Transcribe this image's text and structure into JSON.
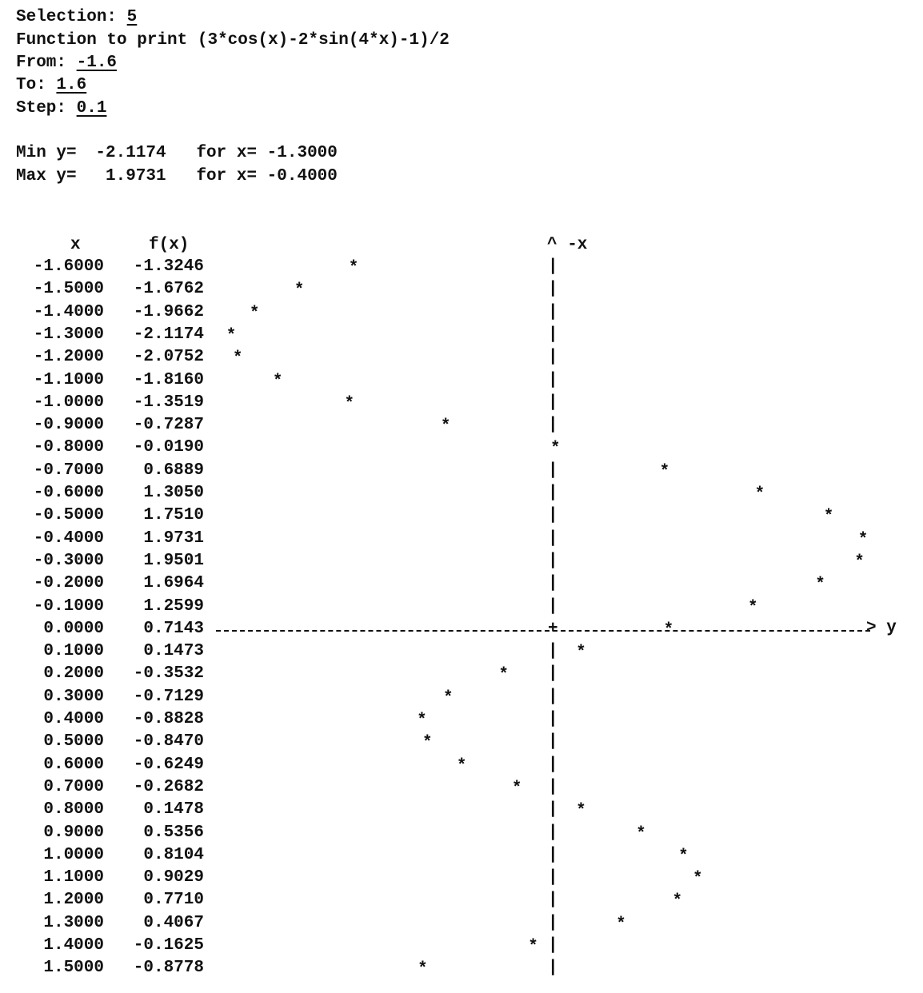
{
  "prompt": {
    "selection_label": "Selection:",
    "selection_value": "5",
    "function_label": "Function to print",
    "function_value": "(3*cos(x)-2*sin(4*x)-1)/2",
    "from_label": "From:",
    "from_value": "-1.6",
    "to_label": "To:",
    "to_value": "1.6",
    "step_label": "Step:",
    "step_value": "0.1"
  },
  "summary": {
    "min_label": "Min y=",
    "min_y": "-2.1174",
    "min_for": "for x=",
    "min_x": "-1.3000",
    "max_label": "Max y=",
    "max_y": "1.9731",
    "max_for": "for x=",
    "max_x": "-0.4000"
  },
  "chart_data": {
    "type": "scatter",
    "header_x": "x",
    "header_fx": "f(x)",
    "axis_top_label": "^ -x",
    "axis_right_label": "> y",
    "ylim": [
      -2.1174,
      1.9731
    ],
    "x": [
      -1.6,
      -1.5,
      -1.4,
      -1.3,
      -1.2,
      -1.1,
      -1.0,
      -0.9,
      -0.8,
      -0.7,
      -0.6,
      -0.5,
      -0.4,
      -0.3,
      -0.2,
      -0.1,
      0.0,
      0.1,
      0.2,
      0.3,
      0.4,
      0.5,
      0.6,
      0.7,
      0.8,
      0.9,
      1.0,
      1.1,
      1.2,
      1.3,
      1.4,
      1.5
    ],
    "y": [
      -1.3246,
      -1.6762,
      -1.9662,
      -2.1174,
      -2.0752,
      -1.816,
      -1.3519,
      -0.7287,
      -0.019,
      0.6889,
      1.305,
      1.751,
      1.9731,
      1.9501,
      1.6964,
      1.2599,
      0.7143,
      0.1473,
      -0.3532,
      -0.7129,
      -0.8828,
      -0.847,
      -0.6249,
      -0.2682,
      0.1478,
      0.5356,
      0.8104,
      0.9029,
      0.771,
      0.4067,
      -0.1625,
      -0.8778
    ],
    "x_text": [
      "-1.6000",
      "-1.5000",
      "-1.4000",
      "-1.3000",
      "-1.2000",
      "-1.1000",
      "-1.0000",
      "-0.9000",
      "-0.8000",
      "-0.7000",
      "-0.6000",
      "-0.5000",
      "-0.4000",
      "-0.3000",
      "-0.2000",
      "-0.1000",
      "0.0000",
      "0.1000",
      "0.2000",
      "0.3000",
      "0.4000",
      "0.5000",
      "0.6000",
      "0.7000",
      "0.8000",
      "0.9000",
      "1.0000",
      "1.1000",
      "1.2000",
      "1.3000",
      "1.4000",
      "1.5000"
    ],
    "y_text": [
      "-1.3246",
      "-1.6762",
      "-1.9662",
      "-2.1174",
      "-2.0752",
      "-1.8160",
      "-1.3519",
      "-0.7287",
      "-0.0190",
      "0.6889",
      "1.3050",
      "1.7510",
      "1.9731",
      "1.9501",
      "1.6964",
      "1.2599",
      "0.7143",
      "0.1473",
      "-0.3532",
      "-0.7129",
      "-0.8828",
      "-0.8470",
      "-0.6249",
      "-0.2682",
      "0.1478",
      "0.5356",
      "0.8104",
      "0.9029",
      "0.7710",
      "0.4067",
      "-0.1625",
      "-0.8778"
    ]
  }
}
